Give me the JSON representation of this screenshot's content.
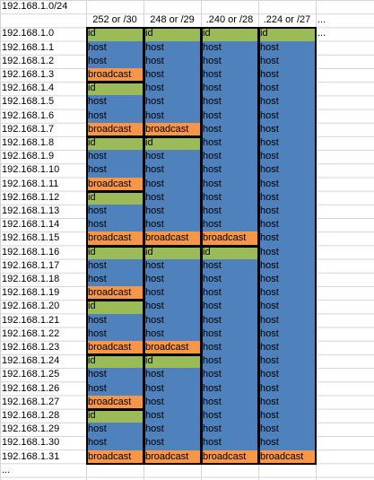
{
  "title": "192.168.1.0/24",
  "headers": [
    "252 or /30",
    "248 or /29",
    ".240 or /28",
    ".224 or /27",
    "..."
  ],
  "row_ellipsis": "...",
  "colors": {
    "id": "#9bbb59",
    "host": "#4f81bd",
    "broadcast": "#f79646"
  },
  "rows": [
    {
      "ip": "192.168.1.0",
      "cells": [
        "id",
        "id",
        "id",
        "id"
      ],
      "extra": "..."
    },
    {
      "ip": "192.168.1.1",
      "cells": [
        "host",
        "host",
        "host",
        "host"
      ]
    },
    {
      "ip": "192.168.1.2",
      "cells": [
        "host",
        "host",
        "host",
        "host"
      ]
    },
    {
      "ip": "192.168.1.3",
      "cells": [
        "broadcast",
        "host",
        "host",
        "host"
      ]
    },
    {
      "ip": "192.168.1.4",
      "cells": [
        "id",
        "host",
        "host",
        "host"
      ]
    },
    {
      "ip": "192.168.1.5",
      "cells": [
        "host",
        "host",
        "host",
        "host"
      ]
    },
    {
      "ip": "192.168.1.6",
      "cells": [
        "host",
        "host",
        "host",
        "host"
      ]
    },
    {
      "ip": "192.168.1.7",
      "cells": [
        "broadcast",
        "broadcast",
        "host",
        "host"
      ]
    },
    {
      "ip": "192.168.1.8",
      "cells": [
        "id",
        "id",
        "host",
        "host"
      ]
    },
    {
      "ip": "192.168.1.9",
      "cells": [
        "host",
        "host",
        "host",
        "host"
      ]
    },
    {
      "ip": "192.168.1.10",
      "cells": [
        "host",
        "host",
        "host",
        "host"
      ]
    },
    {
      "ip": "192.168.1.11",
      "cells": [
        "broadcast",
        "host",
        "host",
        "host"
      ]
    },
    {
      "ip": "192.168.1.12",
      "cells": [
        "id",
        "host",
        "host",
        "host"
      ]
    },
    {
      "ip": "192.168.1.13",
      "cells": [
        "host",
        "host",
        "host",
        "host"
      ]
    },
    {
      "ip": "192.168.1.14",
      "cells": [
        "host",
        "host",
        "host",
        "host"
      ]
    },
    {
      "ip": "192.168.1.15",
      "cells": [
        "broadcast",
        "broadcast",
        "broadcast",
        "host"
      ]
    },
    {
      "ip": "192.168.1.16",
      "cells": [
        "id",
        "id",
        "id",
        "host"
      ]
    },
    {
      "ip": "192.168.1.17",
      "cells": [
        "host",
        "host",
        "host",
        "host"
      ]
    },
    {
      "ip": "192.168.1.18",
      "cells": [
        "host",
        "host",
        "host",
        "host"
      ]
    },
    {
      "ip": "192.168.1.19",
      "cells": [
        "broadcast",
        "host",
        "host",
        "host"
      ]
    },
    {
      "ip": "192.168.1.20",
      "cells": [
        "id",
        "host",
        "host",
        "host"
      ]
    },
    {
      "ip": "192.168.1.21",
      "cells": [
        "host",
        "host",
        "host",
        "host"
      ]
    },
    {
      "ip": "192.168.1.22",
      "cells": [
        "host",
        "host",
        "host",
        "host"
      ]
    },
    {
      "ip": "192.168.1.23",
      "cells": [
        "broadcast",
        "broadcast",
        "host",
        "host"
      ]
    },
    {
      "ip": "192.168.1.24",
      "cells": [
        "id",
        "id",
        "host",
        "host"
      ]
    },
    {
      "ip": "192.168.1.25",
      "cells": [
        "host",
        "host",
        "host",
        "host"
      ]
    },
    {
      "ip": "192.168.1.26",
      "cells": [
        "host",
        "host",
        "host",
        "host"
      ]
    },
    {
      "ip": "192.168.1.27",
      "cells": [
        "broadcast",
        "host",
        "host",
        "host"
      ]
    },
    {
      "ip": "192.168.1.28",
      "cells": [
        "id",
        "host",
        "host",
        "host"
      ]
    },
    {
      "ip": "192.168.1.29",
      "cells": [
        "host",
        "host",
        "host",
        "host"
      ]
    },
    {
      "ip": "192.168.1.30",
      "cells": [
        "host",
        "host",
        "host",
        "host"
      ]
    },
    {
      "ip": "192.168.1.31",
      "cells": [
        "broadcast",
        "broadcast",
        "broadcast",
        "broadcast"
      ]
    }
  ],
  "block_sizes": [
    4,
    8,
    16,
    32
  ]
}
